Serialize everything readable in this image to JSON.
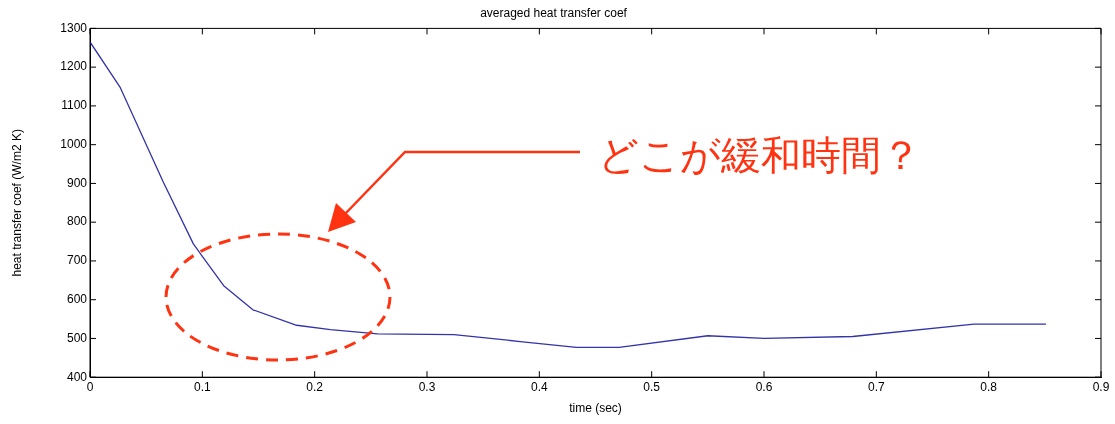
{
  "chart_data": {
    "type": "line",
    "title": "averaged heat transfer coef",
    "xlabel": "time (sec)",
    "ylabel": "heat transfer coef (W/m2 K)",
    "xlim": [
      0,
      0.9
    ],
    "xticks": [
      0,
      0.1,
      0.2,
      0.3,
      0.4,
      0.5,
      0.6,
      0.7,
      0.8,
      0.9
    ],
    "ylim": [
      400,
      1300
    ],
    "yticks": [
      400,
      500,
      600,
      700,
      800,
      900,
      1000,
      1100,
      1200,
      1300
    ],
    "grid": false,
    "legend": false,
    "marker": "none",
    "line_style": "solid",
    "annotations": [
      "どこが緩和時間？"
    ],
    "series": [
      {
        "color": "#3333aa",
        "x": [
          0,
          0.027,
          0.065,
          0.092,
          0.1,
          0.119,
          0.145,
          0.184,
          0.214,
          0.256,
          0.324,
          0.383,
          0.433,
          0.471,
          0.55,
          0.6,
          0.679,
          0.787,
          0.851
        ],
        "values": [
          1265,
          1147,
          905,
          744,
          712,
          636,
          574,
          534,
          523,
          512,
          510,
          492,
          477,
          477,
          507,
          500,
          505,
          537,
          537
        ]
      }
    ]
  }
}
